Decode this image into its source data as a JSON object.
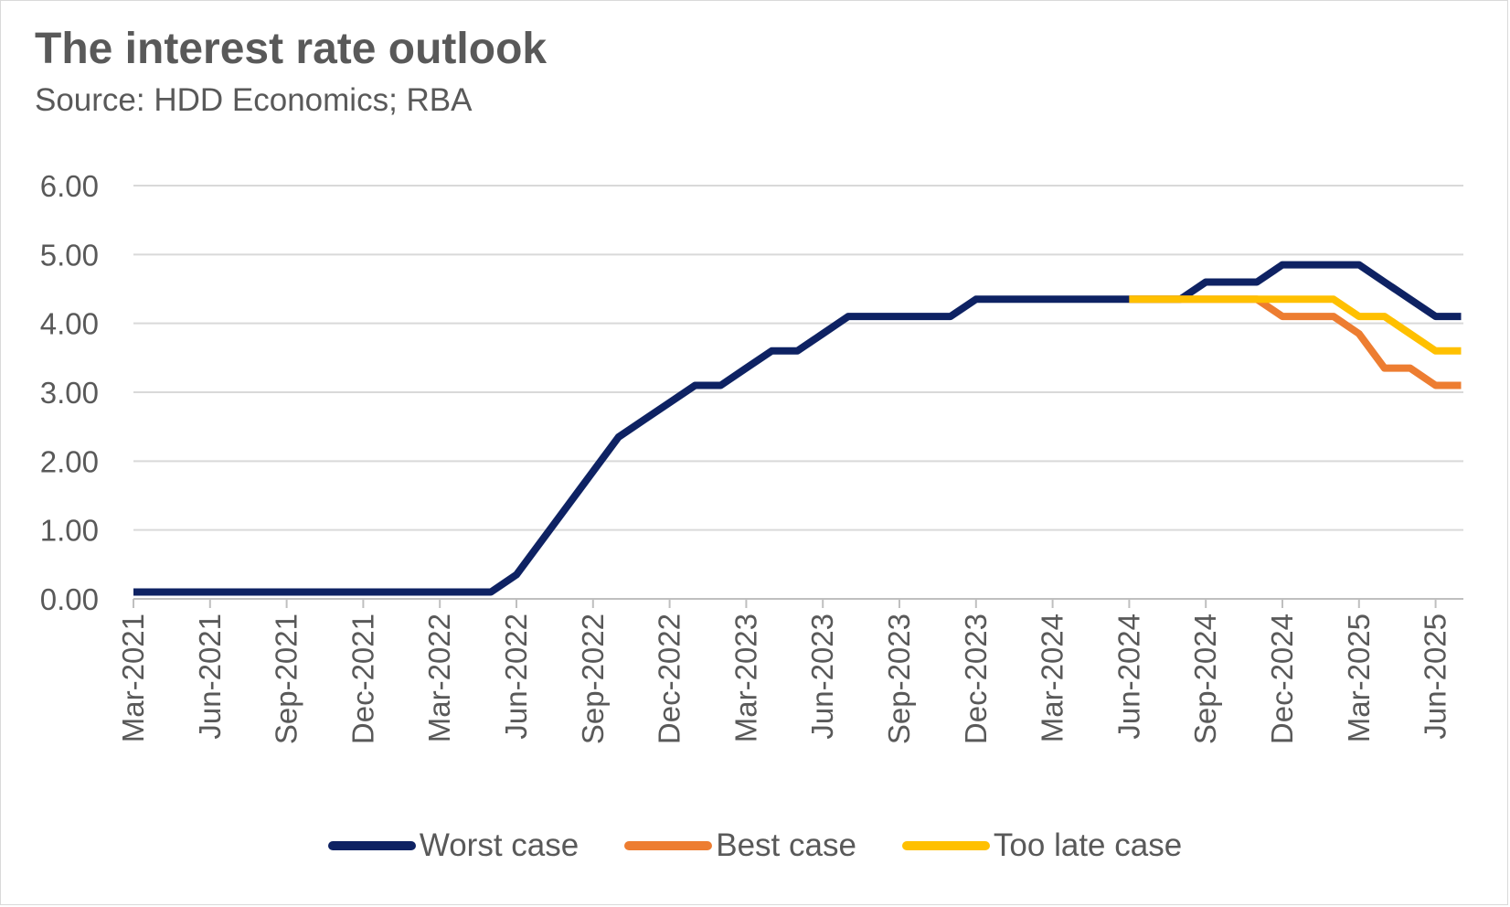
{
  "header": {
    "title": "The interest rate outlook",
    "subtitle": "Source: HDD Economics; RBA"
  },
  "colors": {
    "worst": "#0e2263",
    "best": "#ed7d31",
    "too_late": "#ffc000",
    "grid": "#d9d9d9",
    "text": "#595959"
  },
  "chart_data": {
    "type": "line",
    "title": "The interest rate outlook",
    "subtitle": "Source: HDD Economics; RBA",
    "xlabel": "",
    "ylabel": "",
    "ylim": [
      0,
      6
    ],
    "yticks": [
      "0.00",
      "1.00",
      "2.00",
      "3.00",
      "4.00",
      "5.00",
      "6.00"
    ],
    "x_range": [
      "Mar-2021",
      "Jun-2025"
    ],
    "xticks": [
      "Mar-2021",
      "Jun-2021",
      "Sep-2021",
      "Dec-2021",
      "Mar-2022",
      "Jun-2022",
      "Sep-2022",
      "Dec-2022",
      "Mar-2023",
      "Jun-2023",
      "Sep-2023",
      "Dec-2023",
      "Mar-2024",
      "Jun-2024",
      "Sep-2024",
      "Dec-2024",
      "Mar-2025",
      "Jun-2025"
    ],
    "grid": true,
    "legend_position": "bottom",
    "series": [
      {
        "name": "Worst case",
        "color": "#0e2263",
        "points": [
          [
            "Mar-2021",
            0.1
          ],
          [
            "Apr-2021",
            0.1
          ],
          [
            "May-2021",
            0.1
          ],
          [
            "Jun-2021",
            0.1
          ],
          [
            "Jul-2021",
            0.1
          ],
          [
            "Aug-2021",
            0.1
          ],
          [
            "Sep-2021",
            0.1
          ],
          [
            "Oct-2021",
            0.1
          ],
          [
            "Nov-2021",
            0.1
          ],
          [
            "Dec-2021",
            0.1
          ],
          [
            "Jan-2022",
            0.1
          ],
          [
            "Feb-2022",
            0.1
          ],
          [
            "Mar-2022",
            0.1
          ],
          [
            "Apr-2022",
            0.1
          ],
          [
            "May-2022",
            0.1
          ],
          [
            "Jun-2022",
            0.35
          ],
          [
            "Jul-2022",
            0.85
          ],
          [
            "Aug-2022",
            1.35
          ],
          [
            "Sep-2022",
            1.85
          ],
          [
            "Oct-2022",
            2.35
          ],
          [
            "Nov-2022",
            2.6
          ],
          [
            "Dec-2022",
            2.85
          ],
          [
            "Jan-2023",
            3.1
          ],
          [
            "Feb-2023",
            3.1
          ],
          [
            "Mar-2023",
            3.35
          ],
          [
            "Apr-2023",
            3.6
          ],
          [
            "May-2023",
            3.6
          ],
          [
            "Jun-2023",
            3.85
          ],
          [
            "Jul-2023",
            4.1
          ],
          [
            "Aug-2023",
            4.1
          ],
          [
            "Sep-2023",
            4.1
          ],
          [
            "Oct-2023",
            4.1
          ],
          [
            "Nov-2023",
            4.1
          ],
          [
            "Dec-2023",
            4.35
          ],
          [
            "Jan-2024",
            4.35
          ],
          [
            "Feb-2024",
            4.35
          ],
          [
            "Mar-2024",
            4.35
          ],
          [
            "Apr-2024",
            4.35
          ],
          [
            "May-2024",
            4.35
          ],
          [
            "Jun-2024",
            4.35
          ],
          [
            "Jul-2024",
            4.35
          ],
          [
            "Aug-2024",
            4.35
          ],
          [
            "Sep-2024",
            4.6
          ],
          [
            "Oct-2024",
            4.6
          ],
          [
            "Nov-2024",
            4.6
          ],
          [
            "Dec-2024",
            4.85
          ],
          [
            "Jan-2025",
            4.85
          ],
          [
            "Feb-2025",
            4.85
          ],
          [
            "Mar-2025",
            4.85
          ],
          [
            "Apr-2025",
            4.6
          ],
          [
            "May-2025",
            4.35
          ],
          [
            "Jun-2025",
            4.1
          ],
          [
            "Jul-2025",
            4.1
          ]
        ]
      },
      {
        "name": "Best case",
        "color": "#ed7d31",
        "points": [
          [
            "Jun-2024",
            4.35
          ],
          [
            "Jul-2024",
            4.35
          ],
          [
            "Aug-2024",
            4.35
          ],
          [
            "Sep-2024",
            4.35
          ],
          [
            "Oct-2024",
            4.35
          ],
          [
            "Nov-2024",
            4.35
          ],
          [
            "Dec-2024",
            4.1
          ],
          [
            "Jan-2025",
            4.1
          ],
          [
            "Feb-2025",
            4.1
          ],
          [
            "Mar-2025",
            3.85
          ],
          [
            "Apr-2025",
            3.35
          ],
          [
            "May-2025",
            3.35
          ],
          [
            "Jun-2025",
            3.1
          ],
          [
            "Jul-2025",
            3.1
          ]
        ]
      },
      {
        "name": "Too late case",
        "color": "#ffc000",
        "points": [
          [
            "Jun-2024",
            4.35
          ],
          [
            "Jul-2024",
            4.35
          ],
          [
            "Aug-2024",
            4.35
          ],
          [
            "Sep-2024",
            4.35
          ],
          [
            "Oct-2024",
            4.35
          ],
          [
            "Nov-2024",
            4.35
          ],
          [
            "Dec-2024",
            4.35
          ],
          [
            "Jan-2025",
            4.35
          ],
          [
            "Feb-2025",
            4.35
          ],
          [
            "Mar-2025",
            4.1
          ],
          [
            "Apr-2025",
            4.1
          ],
          [
            "May-2025",
            3.85
          ],
          [
            "Jun-2025",
            3.6
          ],
          [
            "Jul-2025",
            3.6
          ]
        ]
      }
    ]
  }
}
